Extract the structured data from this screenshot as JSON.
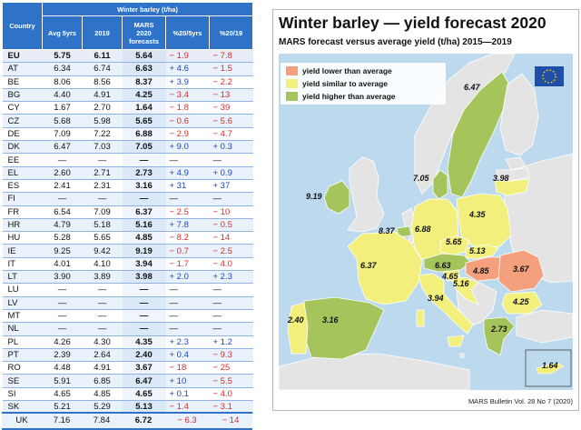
{
  "table": {
    "group_header": "Winter barley (t/ha)",
    "headers": {
      "country": "Country",
      "avg": "Avg 5yrs",
      "y2019": "2019",
      "mars_l1": "MARS",
      "mars_l2": "2020",
      "mars_l3": "forecasts",
      "p5yrs": "%20/5yrs",
      "p19": "%20/19"
    },
    "rows": [
      {
        "c": "EU",
        "avg": "5.75",
        "y19": "6.11",
        "mars": "5.64",
        "p5": "− 1.9",
        "p19": "− 7.8"
      },
      {
        "c": "AT",
        "avg": "6.34",
        "y19": "6.74",
        "mars": "6.63",
        "p5": "+ 4.6",
        "p19": "− 1.5"
      },
      {
        "c": "BE",
        "avg": "8.06",
        "y19": "8.56",
        "mars": "8.37",
        "p5": "+ 3.9",
        "p19": "− 2.2"
      },
      {
        "c": "BG",
        "avg": "4.40",
        "y19": "4.91",
        "mars": "4.25",
        "p5": "− 3.4",
        "p19": "− 13"
      },
      {
        "c": "CY",
        "avg": "1.67",
        "y19": "2.70",
        "mars": "1.64",
        "p5": "− 1.8",
        "p19": "− 39"
      },
      {
        "c": "CZ",
        "avg": "5.68",
        "y19": "5.98",
        "mars": "5.65",
        "p5": "− 0.6",
        "p19": "− 5.6"
      },
      {
        "c": "DE",
        "avg": "7.09",
        "y19": "7.22",
        "mars": "6.88",
        "p5": "− 2.9",
        "p19": "− 4.7"
      },
      {
        "c": "DK",
        "avg": "6.47",
        "y19": "7.03",
        "mars": "7.05",
        "p5": "+ 9.0",
        "p19": "+ 0.3"
      },
      {
        "c": "EE",
        "avg": "—",
        "y19": "—",
        "mars": "—",
        "p5": "—",
        "p19": "—"
      },
      {
        "c": "EL",
        "avg": "2.60",
        "y19": "2.71",
        "mars": "2.73",
        "p5": "+ 4.9",
        "p19": "+ 0.9"
      },
      {
        "c": "ES",
        "avg": "2.41",
        "y19": "2.31",
        "mars": "3.16",
        "p5": "+ 31",
        "p19": "+ 37"
      },
      {
        "c": "FI",
        "avg": "—",
        "y19": "—",
        "mars": "—",
        "p5": "—",
        "p19": "—"
      },
      {
        "c": "FR",
        "avg": "6.54",
        "y19": "7.09",
        "mars": "6.37",
        "p5": "− 2.5",
        "p19": "− 10"
      },
      {
        "c": "HR",
        "avg": "4.79",
        "y19": "5.18",
        "mars": "5.16",
        "p5": "+ 7.8",
        "p19": "− 0.5"
      },
      {
        "c": "HU",
        "avg": "5.28",
        "y19": "5.65",
        "mars": "4.85",
        "p5": "− 8.2",
        "p19": "− 14"
      },
      {
        "c": "IE",
        "avg": "9.25",
        "y19": "9.42",
        "mars": "9.19",
        "p5": "− 0.7",
        "p19": "− 2.5"
      },
      {
        "c": "IT",
        "avg": "4.01",
        "y19": "4.10",
        "mars": "3.94",
        "p5": "− 1.7",
        "p19": "− 4.0"
      },
      {
        "c": "LT",
        "avg": "3.90",
        "y19": "3.89",
        "mars": "3.98",
        "p5": "+ 2.0",
        "p19": "+ 2.3"
      },
      {
        "c": "LU",
        "avg": "—",
        "y19": "—",
        "mars": "—",
        "p5": "—",
        "p19": "—"
      },
      {
        "c": "LV",
        "avg": "—",
        "y19": "—",
        "mars": "—",
        "p5": "—",
        "p19": "—"
      },
      {
        "c": "MT",
        "avg": "—",
        "y19": "—",
        "mars": "—",
        "p5": "—",
        "p19": "—"
      },
      {
        "c": "NL",
        "avg": "—",
        "y19": "—",
        "mars": "—",
        "p5": "—",
        "p19": "—"
      },
      {
        "c": "PL",
        "avg": "4.26",
        "y19": "4.30",
        "mars": "4.35",
        "p5": "+ 2.3",
        "p19": "+ 1.2"
      },
      {
        "c": "PT",
        "avg": "2.39",
        "y19": "2.64",
        "mars": "2.40",
        "p5": "+ 0.4",
        "p19": "− 9.3"
      },
      {
        "c": "RO",
        "avg": "4.48",
        "y19": "4.91",
        "mars": "3.67",
        "p5": "− 18",
        "p19": "− 25"
      },
      {
        "c": "SE",
        "avg": "5.91",
        "y19": "6.85",
        "mars": "6.47",
        "p5": "+ 10",
        "p19": "− 5.5"
      },
      {
        "c": "SI",
        "avg": "4.65",
        "y19": "4.85",
        "mars": "4.65",
        "p5": "+ 0.1",
        "p19": "− 4.0"
      },
      {
        "c": "SK",
        "avg": "5.21",
        "y19": "5.29",
        "mars": "5.13",
        "p5": "− 1.4",
        "p19": "− 3.1"
      }
    ],
    "uk": {
      "c": "UK",
      "avg": "7.16",
      "y19": "7.84",
      "mars": "6.72",
      "p5": "− 6.3",
      "p19": "− 14"
    }
  },
  "map": {
    "title": "Winter barley — yield forecast 2020",
    "subtitle": "MARS forecast versus average yield (t/ha) 2015—2019",
    "legend": [
      {
        "label": "yield lower than average",
        "color": "#f4a07c"
      },
      {
        "label": "yield similar to average",
        "color": "#f2ef7c"
      },
      {
        "label": "yield higher than average",
        "color": "#a6c45c"
      }
    ],
    "labels": {
      "se": "6.47",
      "dk": "7.05",
      "lt": "3.98",
      "ie": "9.19",
      "be": "8.37",
      "de": "6.88",
      "pl": "4.35",
      "cz": "5.65",
      "sk": "5.13",
      "fr": "6.37",
      "at": "6.63",
      "hu": "4.85",
      "ro": "3.67",
      "si": "4.65",
      "hr": "5.16",
      "it": "3.94",
      "bg": "4.25",
      "pt": "2.40",
      "es": "3.16",
      "el": "2.73",
      "cy": "1.64"
    },
    "credit": "MARS Bulletin Vol. 28 No 7 (2020)",
    "colors": {
      "sea": "#bcd9ee",
      "land": "#e4e4e4",
      "lower": "#f4a07c",
      "similar": "#f2ef7c",
      "higher": "#a6c45c",
      "border": "#ffffff"
    }
  }
}
